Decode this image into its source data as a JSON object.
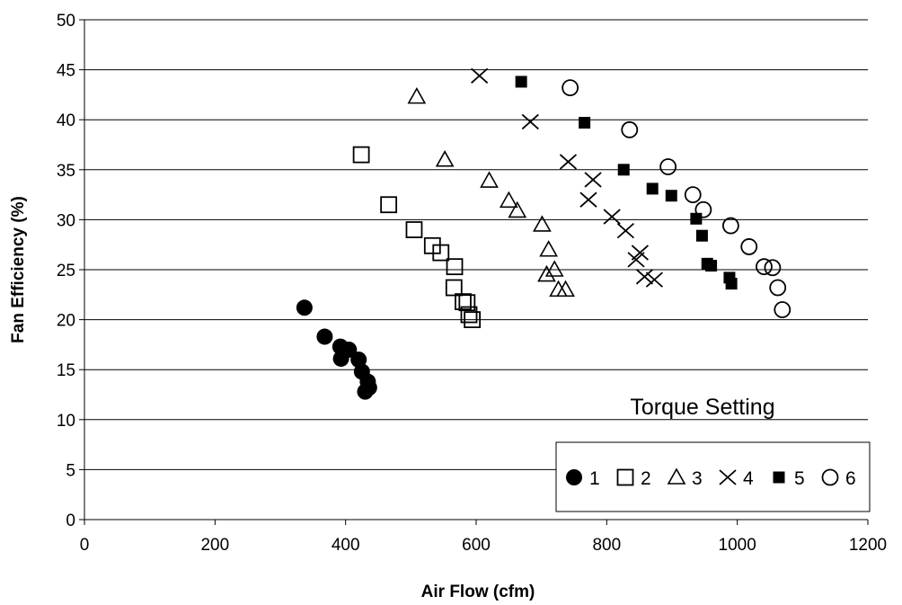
{
  "chart_data": {
    "type": "scatter",
    "title": "",
    "xlabel": "Air Flow (cfm)",
    "ylabel": "Fan Efficiency (%)",
    "xlim": [
      0,
      1200
    ],
    "ylim": [
      0,
      50
    ],
    "xticks": [
      0,
      200,
      400,
      600,
      800,
      1000,
      1200
    ],
    "yticks": [
      0,
      5,
      10,
      15,
      20,
      25,
      30,
      35,
      40,
      45,
      50
    ],
    "grid": "horizontal",
    "annotation": "Torque Setting",
    "legend_position": "bottom-right",
    "series": [
      {
        "name": "1",
        "marker": "filled-circle",
        "points": [
          [
            337,
            21.2
          ],
          [
            368,
            18.3
          ],
          [
            392,
            17.3
          ],
          [
            393,
            16.1
          ],
          [
            405,
            17
          ],
          [
            420,
            16
          ],
          [
            425,
            14.8
          ],
          [
            434,
            13.8
          ],
          [
            436,
            13.2
          ],
          [
            430,
            12.8
          ]
        ]
      },
      {
        "name": "2",
        "marker": "open-square",
        "points": [
          [
            424,
            36.5
          ],
          [
            466,
            31.5
          ],
          [
            505,
            29
          ],
          [
            533,
            27.4
          ],
          [
            546,
            26.7
          ],
          [
            567,
            25.3
          ],
          [
            566,
            23.2
          ],
          [
            580,
            21.8
          ],
          [
            586,
            21.7
          ],
          [
            589,
            20.5
          ],
          [
            594,
            20
          ]
        ]
      },
      {
        "name": "3",
        "marker": "open-triangle",
        "points": [
          [
            509,
            42.3
          ],
          [
            552,
            36
          ],
          [
            620,
            33.9
          ],
          [
            650,
            31.9
          ],
          [
            663,
            30.9
          ],
          [
            701,
            29.5
          ],
          [
            711,
            27
          ],
          [
            720,
            25
          ],
          [
            708,
            24.5
          ],
          [
            726,
            23
          ],
          [
            737,
            23
          ]
        ]
      },
      {
        "name": "4",
        "marker": "x",
        "points": [
          [
            605,
            44.4
          ],
          [
            683,
            39.8
          ],
          [
            741,
            35.8
          ],
          [
            779,
            34
          ],
          [
            772,
            32
          ],
          [
            808,
            30.3
          ],
          [
            829,
            28.9
          ],
          [
            845,
            26
          ],
          [
            851,
            26.7
          ],
          [
            858,
            24.3
          ],
          [
            873,
            24
          ]
        ]
      },
      {
        "name": "5",
        "marker": "filled-square",
        "points": [
          [
            669,
            43.8
          ],
          [
            766,
            39.7
          ],
          [
            826,
            35
          ],
          [
            870,
            33.1
          ],
          [
            899,
            32.4
          ],
          [
            937,
            30.1
          ],
          [
            946,
            28.4
          ],
          [
            954,
            25.6
          ],
          [
            960,
            25.4
          ],
          [
            988,
            24.2
          ],
          [
            991,
            23.6
          ]
        ]
      },
      {
        "name": "6",
        "marker": "open-circle",
        "points": [
          [
            744,
            43.2
          ],
          [
            835,
            39
          ],
          [
            894,
            35.3
          ],
          [
            932,
            32.5
          ],
          [
            948,
            31
          ],
          [
            990,
            29.4
          ],
          [
            1018,
            27.3
          ],
          [
            1041,
            25.3
          ],
          [
            1054,
            25.2
          ],
          [
            1062,
            23.2
          ],
          [
            1069,
            21
          ]
        ]
      }
    ]
  },
  "colors": {
    "marker": "#000000",
    "gridline": "#000000",
    "background": "#ffffff"
  }
}
